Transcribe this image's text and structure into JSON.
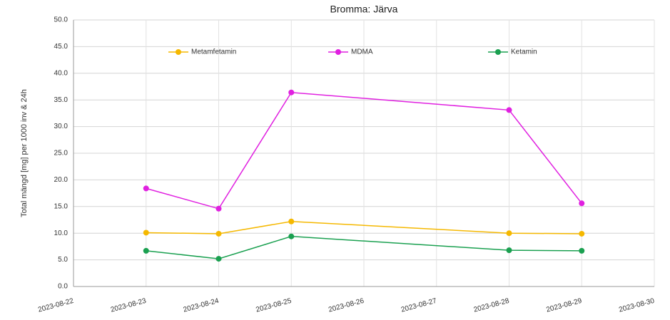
{
  "chart_data": {
    "type": "line",
    "title": "Bromma: Järva",
    "y_label": "Total mängd [mg] per 1000 inv & 24h",
    "x": [
      "2023-08-23",
      "2023-08-24",
      "2023-08-25",
      "2023-08-28",
      "2023-08-29"
    ],
    "series": [
      {
        "name": "Metamfetamin",
        "color": "#f5b800",
        "values": [
          10.1,
          9.9,
          12.2,
          10.0,
          9.9
        ]
      },
      {
        "name": "MDMA",
        "color": "#e020e0",
        "values": [
          18.4,
          14.6,
          36.4,
          33.1,
          15.6
        ]
      },
      {
        "name": "Ketamin",
        "color": "#1aa050",
        "values": [
          6.7,
          5.2,
          9.4,
          6.8,
          6.7
        ]
      }
    ],
    "xlim": [
      "2023-08-22",
      "2023-08-30"
    ],
    "xticks": [
      "2023-08-22",
      "2023-08-23",
      "2023-08-24",
      "2023-08-25",
      "2023-08-26",
      "2023-08-27",
      "2023-08-28",
      "2023-08-29",
      "2023-08-30"
    ],
    "ylim": [
      0,
      50
    ],
    "yticks": [
      {
        "value": 0,
        "label": "0.0"
      },
      {
        "value": 5,
        "label": "5.0"
      },
      {
        "value": 10,
        "label": "10.0"
      },
      {
        "value": 15,
        "label": "15.0"
      },
      {
        "value": 20,
        "label": "20.0"
      },
      {
        "value": 25,
        "label": "25.0"
      },
      {
        "value": 30,
        "label": "30.0"
      },
      {
        "value": 35,
        "label": "35.0"
      },
      {
        "value": 40,
        "label": "40.0"
      },
      {
        "value": 45,
        "label": "45.0"
      },
      {
        "value": 50,
        "label": "50.0"
      }
    ],
    "grid": true,
    "legend": "top"
  }
}
